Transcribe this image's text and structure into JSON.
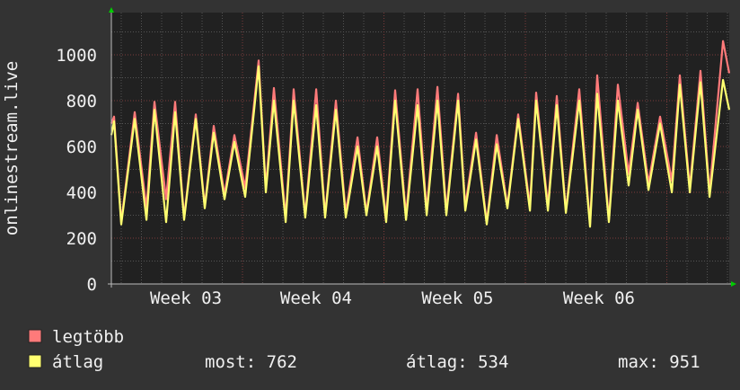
{
  "chart_data": {
    "type": "line",
    "ylabel": "onlinestream.live",
    "xlabel": "",
    "ylim": [
      0,
      1160
    ],
    "xlim": [
      3.073,
      7.441
    ],
    "y_ticks": [
      0,
      200,
      400,
      600,
      800,
      1000
    ],
    "x_ticks": [
      {
        "label": "Week 03",
        "at": 3.6
      },
      {
        "label": "Week 04",
        "at": 4.52
      },
      {
        "label": "Week 05",
        "at": 5.52
      },
      {
        "label": "Week 06",
        "at": 6.52
      }
    ],
    "x_major_grid": [
      4,
      5,
      6,
      7
    ],
    "grid": true,
    "colors": {
      "background": "#333333",
      "plot": "#212121",
      "grid": "#555555",
      "major_grid": "#7a3a3a",
      "axis_arrow": "#00cc00"
    },
    "x": [
      3.073,
      3.092,
      3.143,
      3.238,
      3.321,
      3.378,
      3.46,
      3.524,
      3.587,
      3.67,
      3.733,
      3.797,
      3.873,
      3.943,
      4.019,
      4.114,
      4.165,
      4.222,
      4.305,
      4.362,
      4.444,
      4.521,
      4.584,
      4.66,
      4.73,
      4.813,
      4.876,
      4.952,
      5.016,
      5.079,
      5.156,
      5.238,
      5.302,
      5.378,
      5.441,
      5.524,
      5.575,
      5.651,
      5.727,
      5.797,
      5.873,
      5.949,
      6.032,
      6.076,
      6.159,
      6.222,
      6.286,
      6.381,
      6.457,
      6.508,
      6.59,
      6.654,
      6.73,
      6.794,
      6.87,
      6.952,
      7.035,
      7.092,
      7.162,
      7.238,
      7.302,
      7.397,
      7.441
    ],
    "series": [
      {
        "name": "legtöbb",
        "color": "#ff7a7a",
        "values": [
          700,
          730,
          270,
          750,
          330,
          795,
          370,
          795,
          290,
          740,
          340,
          690,
          390,
          650,
          420,
          975,
          420,
          855,
          290,
          850,
          300,
          850,
          300,
          800,
          310,
          640,
          310,
          640,
          290,
          845,
          300,
          850,
          320,
          860,
          320,
          830,
          340,
          660,
          270,
          650,
          340,
          740,
          340,
          835,
          340,
          820,
          320,
          850,
          260,
          910,
          280,
          870,
          480,
          790,
          440,
          730,
          450,
          910,
          420,
          930,
          400,
          1060,
          920
        ]
      },
      {
        "name": "átlag",
        "color": "#ffff70",
        "values": [
          650,
          710,
          260,
          720,
          280,
          760,
          270,
          750,
          280,
          720,
          330,
          660,
          370,
          620,
          380,
          950,
          400,
          800,
          270,
          800,
          290,
          780,
          290,
          760,
          290,
          600,
          300,
          600,
          270,
          800,
          280,
          780,
          300,
          800,
          300,
          800,
          320,
          630,
          260,
          610,
          330,
          720,
          320,
          800,
          320,
          780,
          310,
          800,
          250,
          830,
          270,
          800,
          430,
          760,
          410,
          700,
          400,
          870,
          400,
          880,
          380,
          890,
          760
        ]
      }
    ]
  },
  "legend": {
    "items": [
      {
        "label": "legtöbb",
        "color": "#ff7a7a"
      },
      {
        "label": "átlag",
        "color": "#ffff70"
      }
    ],
    "stats": {
      "most": "most: 762",
      "atlag": "átlag: 534",
      "max": "max: 951"
    }
  }
}
